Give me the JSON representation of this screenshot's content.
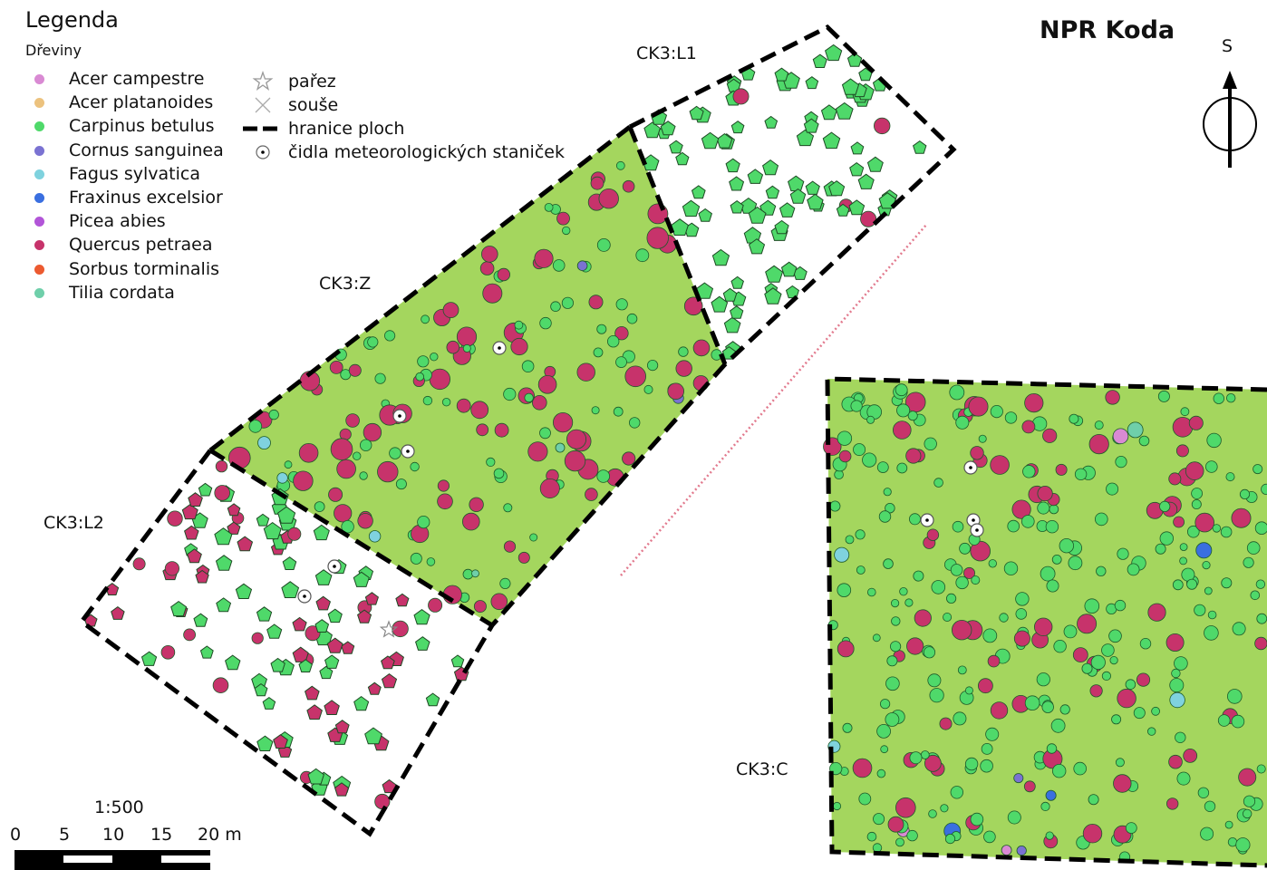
{
  "legend": {
    "title": "Legenda",
    "subtitle": "Dřeviny",
    "species": [
      {
        "label": "Acer campestre",
        "color": "#d98ad3"
      },
      {
        "label": "Acer platanoides",
        "color": "#ecc27e"
      },
      {
        "label": "Carpinus betulus",
        "color": "#4fd96a"
      },
      {
        "label": "Cornus sanguinea",
        "color": "#7a72d2"
      },
      {
        "label": "Fagus sylvatica",
        "color": "#7fd2de"
      },
      {
        "label": "Fraxinus excelsior",
        "color": "#3a6fe0"
      },
      {
        "label": "Picea abies",
        "color": "#b255d8"
      },
      {
        "label": "Quercus petraea",
        "color": "#c7336b"
      },
      {
        "label": "Sorbus torminalis",
        "color": "#ec5a30"
      },
      {
        "label": "Tilia cordata",
        "color": "#6fcfaa"
      }
    ],
    "symbols": [
      {
        "label": "pařez",
        "icon": "star-outline-icon"
      },
      {
        "label": "souše",
        "icon": "x-cross-icon"
      },
      {
        "label": "hranice ploch",
        "icon": "dashed-line-icon"
      },
      {
        "label": "čidla meteorologických staniček",
        "icon": "dotted-circle-icon"
      }
    ]
  },
  "map": {
    "title": "NPR Koda",
    "north_letter": "S",
    "plots": [
      "CK3:L1",
      "CK3:Z",
      "CK3:L2",
      "CK3:C"
    ],
    "colors": {
      "fenced_fill": "#a4d65e",
      "boundary": "#000000",
      "fence": "#e27a8e"
    }
  },
  "scale": {
    "ratio": "1:500",
    "ticks": [
      "0",
      "5",
      "10",
      "15",
      "20 m"
    ]
  }
}
